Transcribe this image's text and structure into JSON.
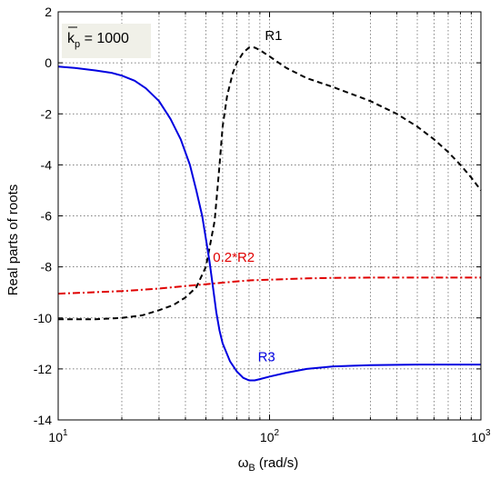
{
  "chart_data": {
    "type": "line",
    "x_scale": "log",
    "xlim": [
      10,
      1000
    ],
    "ylim": [
      -14,
      2
    ],
    "grid": true,
    "xlabel": "ω",
    "xlabel_sub": "B",
    "xlabel_rest": " (rad/s)",
    "ylabel": "Real parts of roots",
    "x_ticks": [
      {
        "value": 10,
        "base": "10",
        "exp": "1"
      },
      {
        "value": 100,
        "base": "10",
        "exp": "2"
      },
      {
        "value": 1000,
        "base": "10",
        "exp": "3"
      }
    ],
    "y_ticks": [
      2,
      0,
      -2,
      -4,
      -6,
      -8,
      -10,
      -12,
      -14
    ],
    "annotation": {
      "var": "k",
      "sub": "p",
      "text": " = 1000",
      "position": "top-left",
      "background": "#f0f0e8"
    },
    "series": [
      {
        "name": "R1",
        "color": "#000000",
        "dash": "6,4",
        "label_at": [
          95,
          0.9
        ],
        "x": [
          10,
          15,
          20,
          25,
          30,
          35,
          40,
          45,
          50,
          55,
          58,
          60,
          63,
          67,
          70,
          75,
          80,
          85,
          90,
          100,
          120,
          150,
          200,
          300,
          400,
          500,
          600,
          700,
          800,
          900,
          1000
        ],
        "y": [
          -10.05,
          -10.05,
          -10.0,
          -9.9,
          -9.7,
          -9.5,
          -9.2,
          -8.8,
          -8.0,
          -6.2,
          -4.0,
          -2.5,
          -1.3,
          -0.4,
          0.0,
          0.4,
          0.6,
          0.6,
          0.5,
          0.25,
          -0.2,
          -0.6,
          -0.95,
          -1.5,
          -2.0,
          -2.5,
          -3.0,
          -3.5,
          -4.0,
          -4.5,
          -5.0
        ]
      },
      {
        "name": "0.2*R2",
        "color": "#e00000",
        "dash": "8,3,2,3",
        "label_at": [
          54,
          -7.8
        ],
        "x": [
          10,
          20,
          30,
          40,
          50,
          60,
          70,
          80,
          100,
          150,
          200,
          300,
          500,
          700,
          1000
        ],
        "y": [
          -9.05,
          -8.95,
          -8.85,
          -8.75,
          -8.68,
          -8.62,
          -8.57,
          -8.53,
          -8.5,
          -8.45,
          -8.43,
          -8.42,
          -8.42,
          -8.42,
          -8.42
        ]
      },
      {
        "name": "R3",
        "color": "#0000e0",
        "dash": "",
        "label_at": [
          88,
          -11.7
        ],
        "x": [
          10,
          12,
          15,
          18,
          20,
          23,
          26,
          30,
          34,
          38,
          42,
          45,
          48,
          50,
          52,
          54,
          56,
          58,
          60,
          65,
          70,
          75,
          80,
          85,
          90,
          100,
          120,
          150,
          200,
          300,
          500,
          1000
        ],
        "y": [
          -0.15,
          -0.2,
          -0.3,
          -0.4,
          -0.5,
          -0.7,
          -1.0,
          -1.5,
          -2.2,
          -3.0,
          -4.0,
          -5.0,
          -6.0,
          -6.9,
          -7.8,
          -8.8,
          -9.8,
          -10.5,
          -11.0,
          -11.7,
          -12.1,
          -12.35,
          -12.45,
          -12.45,
          -12.4,
          -12.3,
          -12.15,
          -12.0,
          -11.9,
          -11.85,
          -11.83,
          -11.83
        ]
      }
    ]
  }
}
